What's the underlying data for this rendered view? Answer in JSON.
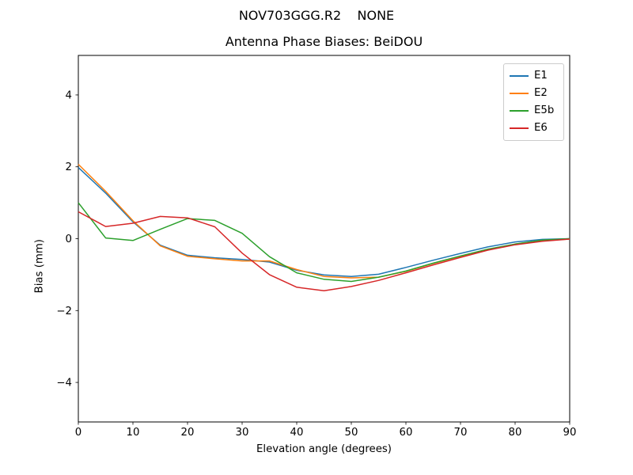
{
  "figure": {
    "suptitle": "NOV703GGG.R2    NONE"
  },
  "chart_data": {
    "type": "line",
    "title": "Antenna Phase Biases: BeiDOU",
    "xlabel": "Elevation angle (degrees)",
    "ylabel": "Bias (mm)",
    "xlim": [
      0,
      90
    ],
    "ylim": [
      -5.1,
      5.1
    ],
    "xticks": [
      0,
      10,
      20,
      30,
      40,
      50,
      60,
      70,
      80,
      90
    ],
    "xtick_labels": [
      "0",
      "10",
      "20",
      "30",
      "40",
      "50",
      "60",
      "70",
      "80",
      "90"
    ],
    "yticks": [
      -4,
      -2,
      0,
      2,
      4
    ],
    "ytick_labels": [
      "−4",
      "−2",
      "0",
      "2",
      "4"
    ],
    "grid": false,
    "legend_position": "upper right",
    "x": [
      0,
      5,
      10,
      15,
      20,
      25,
      30,
      35,
      40,
      45,
      50,
      55,
      60,
      65,
      70,
      75,
      80,
      85,
      90
    ],
    "series": [
      {
        "name": "E1",
        "color": "#1f77b4",
        "values": [
          1.98,
          1.27,
          0.47,
          -0.18,
          -0.46,
          -0.53,
          -0.58,
          -0.65,
          -0.88,
          -1.01,
          -1.05,
          -0.99,
          -0.8,
          -0.6,
          -0.41,
          -0.23,
          -0.09,
          -0.02,
          0.0
        ]
      },
      {
        "name": "E2",
        "color": "#ff7f0e",
        "values": [
          2.07,
          1.32,
          0.5,
          -0.2,
          -0.49,
          -0.56,
          -0.62,
          -0.62,
          -0.86,
          -1.05,
          -1.09,
          -1.07,
          -0.91,
          -0.69,
          -0.49,
          -0.3,
          -0.15,
          -0.05,
          -0.01
        ]
      },
      {
        "name": "E5b",
        "color": "#2ca02c",
        "values": [
          1.0,
          0.02,
          -0.05,
          0.26,
          0.56,
          0.51,
          0.15,
          -0.5,
          -0.95,
          -1.13,
          -1.19,
          -1.07,
          -0.9,
          -0.68,
          -0.48,
          -0.29,
          -0.15,
          -0.04,
          0.0
        ]
      },
      {
        "name": "E6",
        "color": "#d62728",
        "values": [
          0.75,
          0.34,
          0.43,
          0.62,
          0.58,
          0.33,
          -0.4,
          -1.0,
          -1.35,
          -1.45,
          -1.33,
          -1.16,
          -0.95,
          -0.73,
          -0.52,
          -0.32,
          -0.17,
          -0.07,
          -0.01
        ]
      }
    ]
  }
}
